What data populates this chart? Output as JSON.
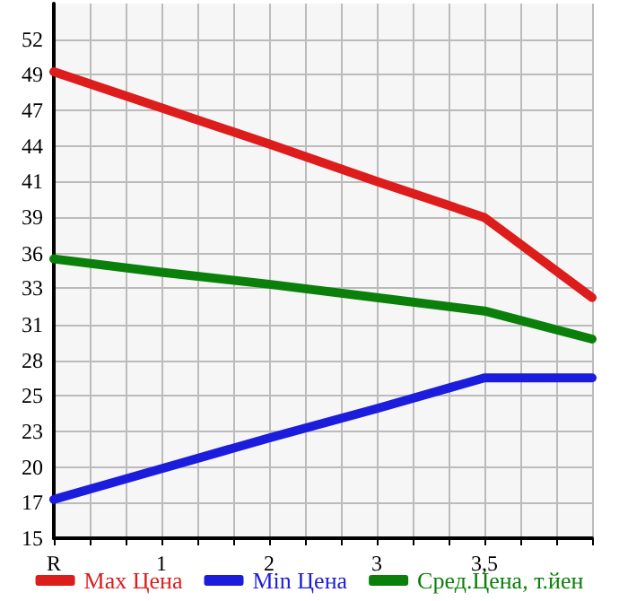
{
  "chart_data": {
    "type": "line",
    "categories": [
      "R",
      "1",
      "2",
      "3",
      "3,5",
      null
    ],
    "series": [
      {
        "name": "Max Цена",
        "color": "#dd1c1c",
        "values": [
          49.6,
          46.9,
          44.2,
          41.4,
          38.7,
          32.7
        ]
      },
      {
        "name": "Min Цена",
        "color": "#1c1cdd",
        "values": [
          17.6,
          19.9,
          22.2,
          24.4,
          26.7,
          26.7
        ]
      },
      {
        "name": "Сред.Цена, т.йен",
        "color": "#0a800a",
        "values": [
          35.6,
          34.6,
          33.7,
          32.7,
          31.7,
          29.6
        ]
      }
    ],
    "ylim": [
      14.7,
      54.7
    ],
    "yticks": [
      {
        "value": 14.7,
        "label": "15"
      },
      {
        "value": 17.4,
        "label": "17"
      },
      {
        "value": 20.0,
        "label": "20"
      },
      {
        "value": 22.7,
        "label": "23"
      },
      {
        "value": 25.4,
        "label": "25"
      },
      {
        "value": 28.0,
        "label": "28"
      },
      {
        "value": 30.7,
        "label": "31"
      },
      {
        "value": 33.4,
        "label": "33"
      },
      {
        "value": 36.0,
        "label": "36"
      },
      {
        "value": 38.7,
        "label": "39"
      },
      {
        "value": 41.4,
        "label": "41"
      },
      {
        "value": 44.0,
        "label": "44"
      },
      {
        "value": 46.7,
        "label": "47"
      },
      {
        "value": 49.4,
        "label": "49"
      },
      {
        "value": 52.0,
        "label": "52"
      }
    ],
    "grid": true,
    "legend": "bottom",
    "marker": "none",
    "line_style": "solid"
  }
}
